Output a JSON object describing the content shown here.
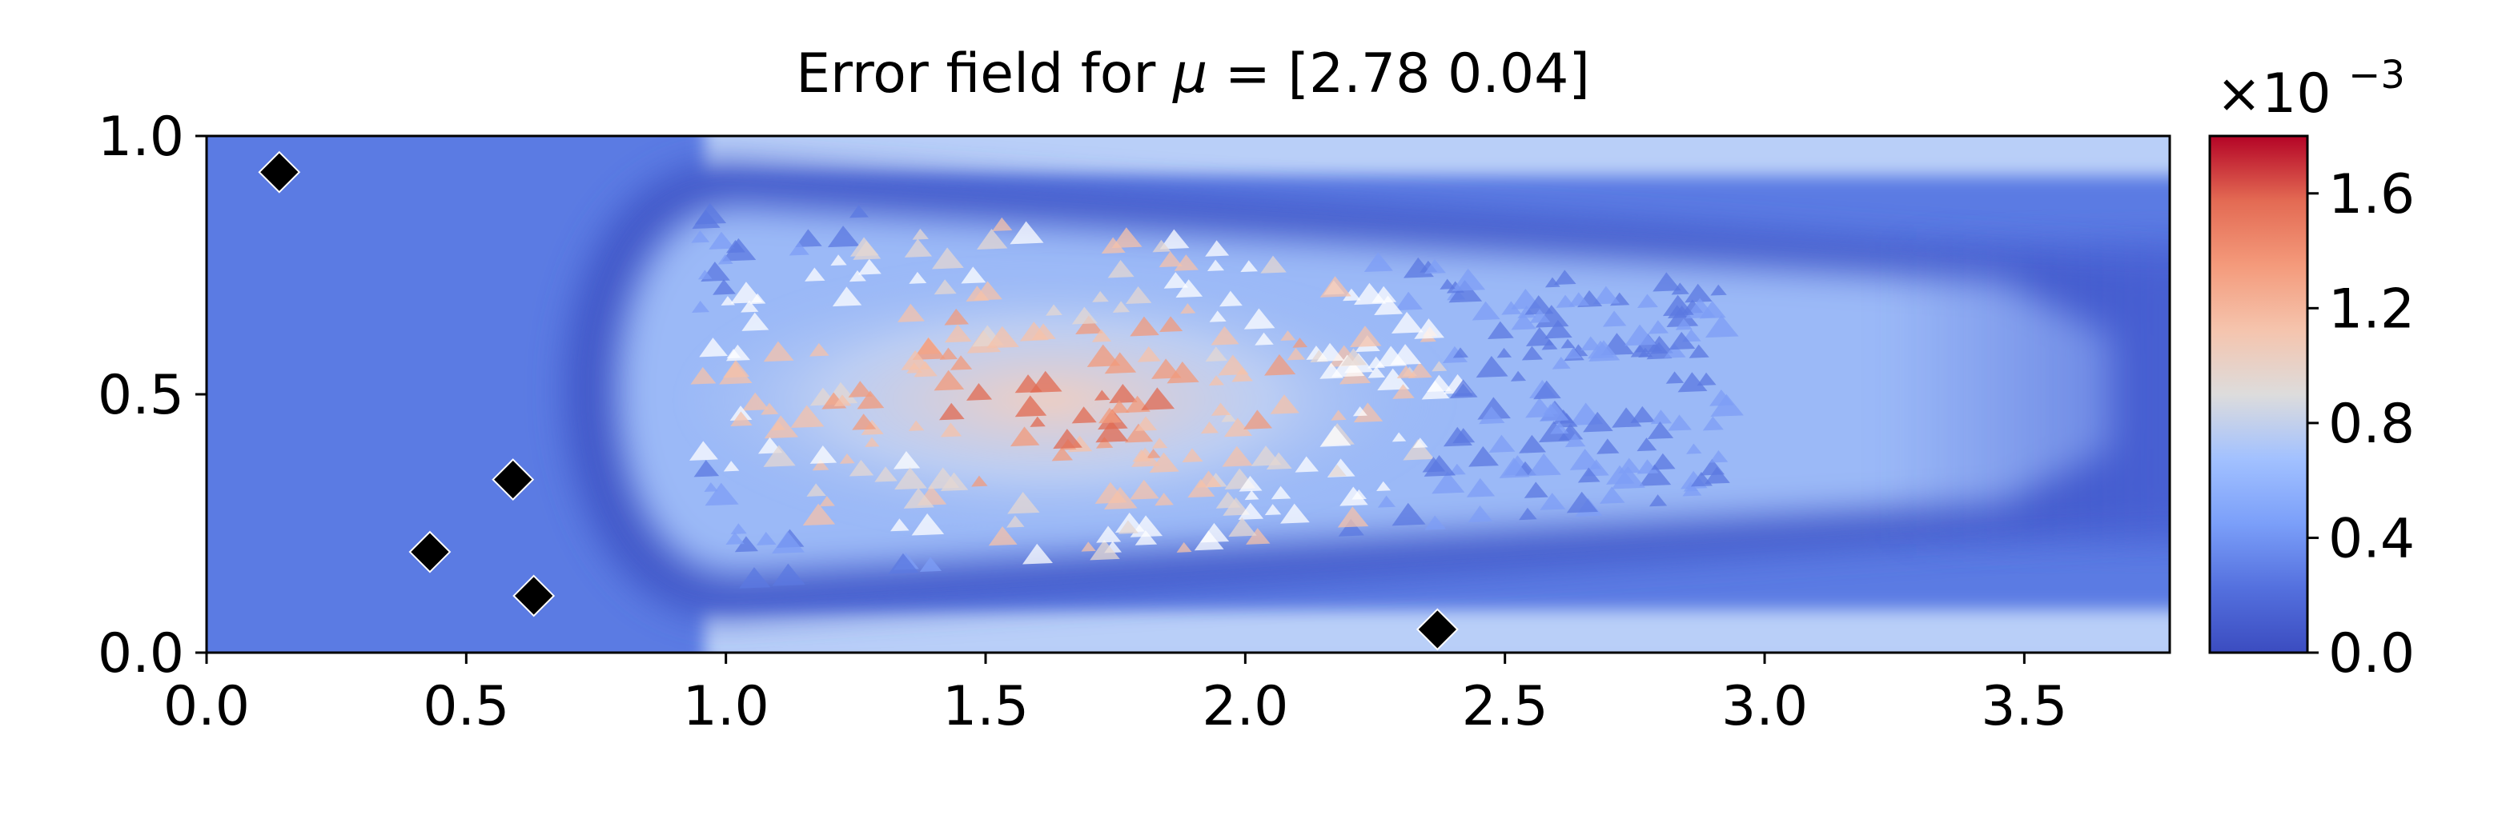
{
  "chart_data": {
    "type": "heatmap",
    "title": "Error field for μ = [2.78 0.04]",
    "title_prefix": "Error field for",
    "title_symbol": "μ",
    "title_suffix": "= [2.78 0.04]",
    "xlabel": "",
    "ylabel": "",
    "xlim": [
      0.0,
      3.78
    ],
    "ylim": [
      0.0,
      1.0
    ],
    "x_ticks": [
      0.0,
      0.5,
      1.0,
      1.5,
      2.0,
      2.5,
      3.0,
      3.5
    ],
    "x_tick_labels": [
      "0.0",
      "0.5",
      "1.0",
      "1.5",
      "2.0",
      "2.5",
      "3.0",
      "3.5"
    ],
    "y_ticks": [
      0.0,
      0.5,
      1.0
    ],
    "y_tick_labels": [
      "0.0",
      "0.5",
      "1.0"
    ],
    "grid": false,
    "colormap": "coolwarm",
    "colorbar": {
      "min": 0.0,
      "max": 0.0018,
      "ticks": [
        0.0,
        0.4,
        0.8,
        1.2,
        1.6
      ],
      "tick_labels": [
        "0.0",
        "0.4",
        "0.8",
        "1.2",
        "1.6"
      ],
      "multiplier_base": "×10",
      "multiplier_exp": "−3"
    },
    "markers": {
      "shape": "diamond",
      "color": "#000000",
      "points": [
        {
          "x": 0.14,
          "y": 0.93
        },
        {
          "x": 0.59,
          "y": 0.335
        },
        {
          "x": 0.43,
          "y": 0.195
        },
        {
          "x": 0.63,
          "y": 0.11
        },
        {
          "x": 2.37,
          "y": 0.045
        }
      ]
    }
  }
}
